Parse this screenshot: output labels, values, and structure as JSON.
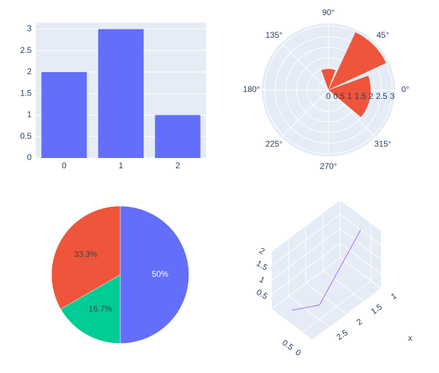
{
  "chart_data": [
    {
      "type": "bar",
      "categories": [
        "0",
        "1",
        "2"
      ],
      "values": [
        2,
        3,
        1
      ],
      "color": "#636efa",
      "ylim": [
        0,
        3.15
      ],
      "yticks": [
        0,
        0.5,
        1,
        1.5,
        2,
        2.5,
        3
      ],
      "grid": true
    },
    {
      "type": "barpolar",
      "theta": [
        90,
        45,
        -10
      ],
      "r": [
        1,
        3,
        2
      ],
      "width": [
        40,
        40,
        60
      ],
      "color": "#ef553b",
      "rlim": [
        0,
        3.13
      ],
      "rticks": [
        0,
        0.5,
        1,
        1.5,
        2,
        2.5,
        3
      ],
      "angular_ticks": [
        {
          "value": 0,
          "label": "0°"
        },
        {
          "value": 45,
          "label": "45°"
        },
        {
          "value": 90,
          "label": "90°"
        },
        {
          "value": 135,
          "label": "135°"
        },
        {
          "value": 180,
          "label": "180°"
        },
        {
          "value": 225,
          "label": "225°"
        },
        {
          "value": 270,
          "label": "270°"
        },
        {
          "value": 315,
          "label": "315°"
        }
      ]
    },
    {
      "type": "pie",
      "values": [
        50,
        16.7,
        33.3
      ],
      "value_labels": [
        "50%",
        "16.7%",
        "33.3%"
      ],
      "colors": [
        "#636efa",
        "#00cc96",
        "#ef553b"
      ],
      "text_colors": [
        "#ffffff",
        "#444444",
        "#444444"
      ]
    },
    {
      "type": "scatter3d",
      "x": [
        3,
        2.5,
        1
      ],
      "y": [
        1,
        0.5,
        1
      ],
      "z": [
        0.5,
        0.5,
        1.5
      ],
      "color": "#ab63fa",
      "xlim": [
        1,
        3
      ],
      "ylim": [
        0,
        2
      ],
      "zlim": [
        0,
        2
      ],
      "xlabel": "x",
      "xticks": [
        1,
        1.5,
        2,
        2.5
      ],
      "yticks": [
        0,
        0.5
      ],
      "zticks": [
        0.5,
        1,
        1.5,
        2
      ]
    }
  ]
}
